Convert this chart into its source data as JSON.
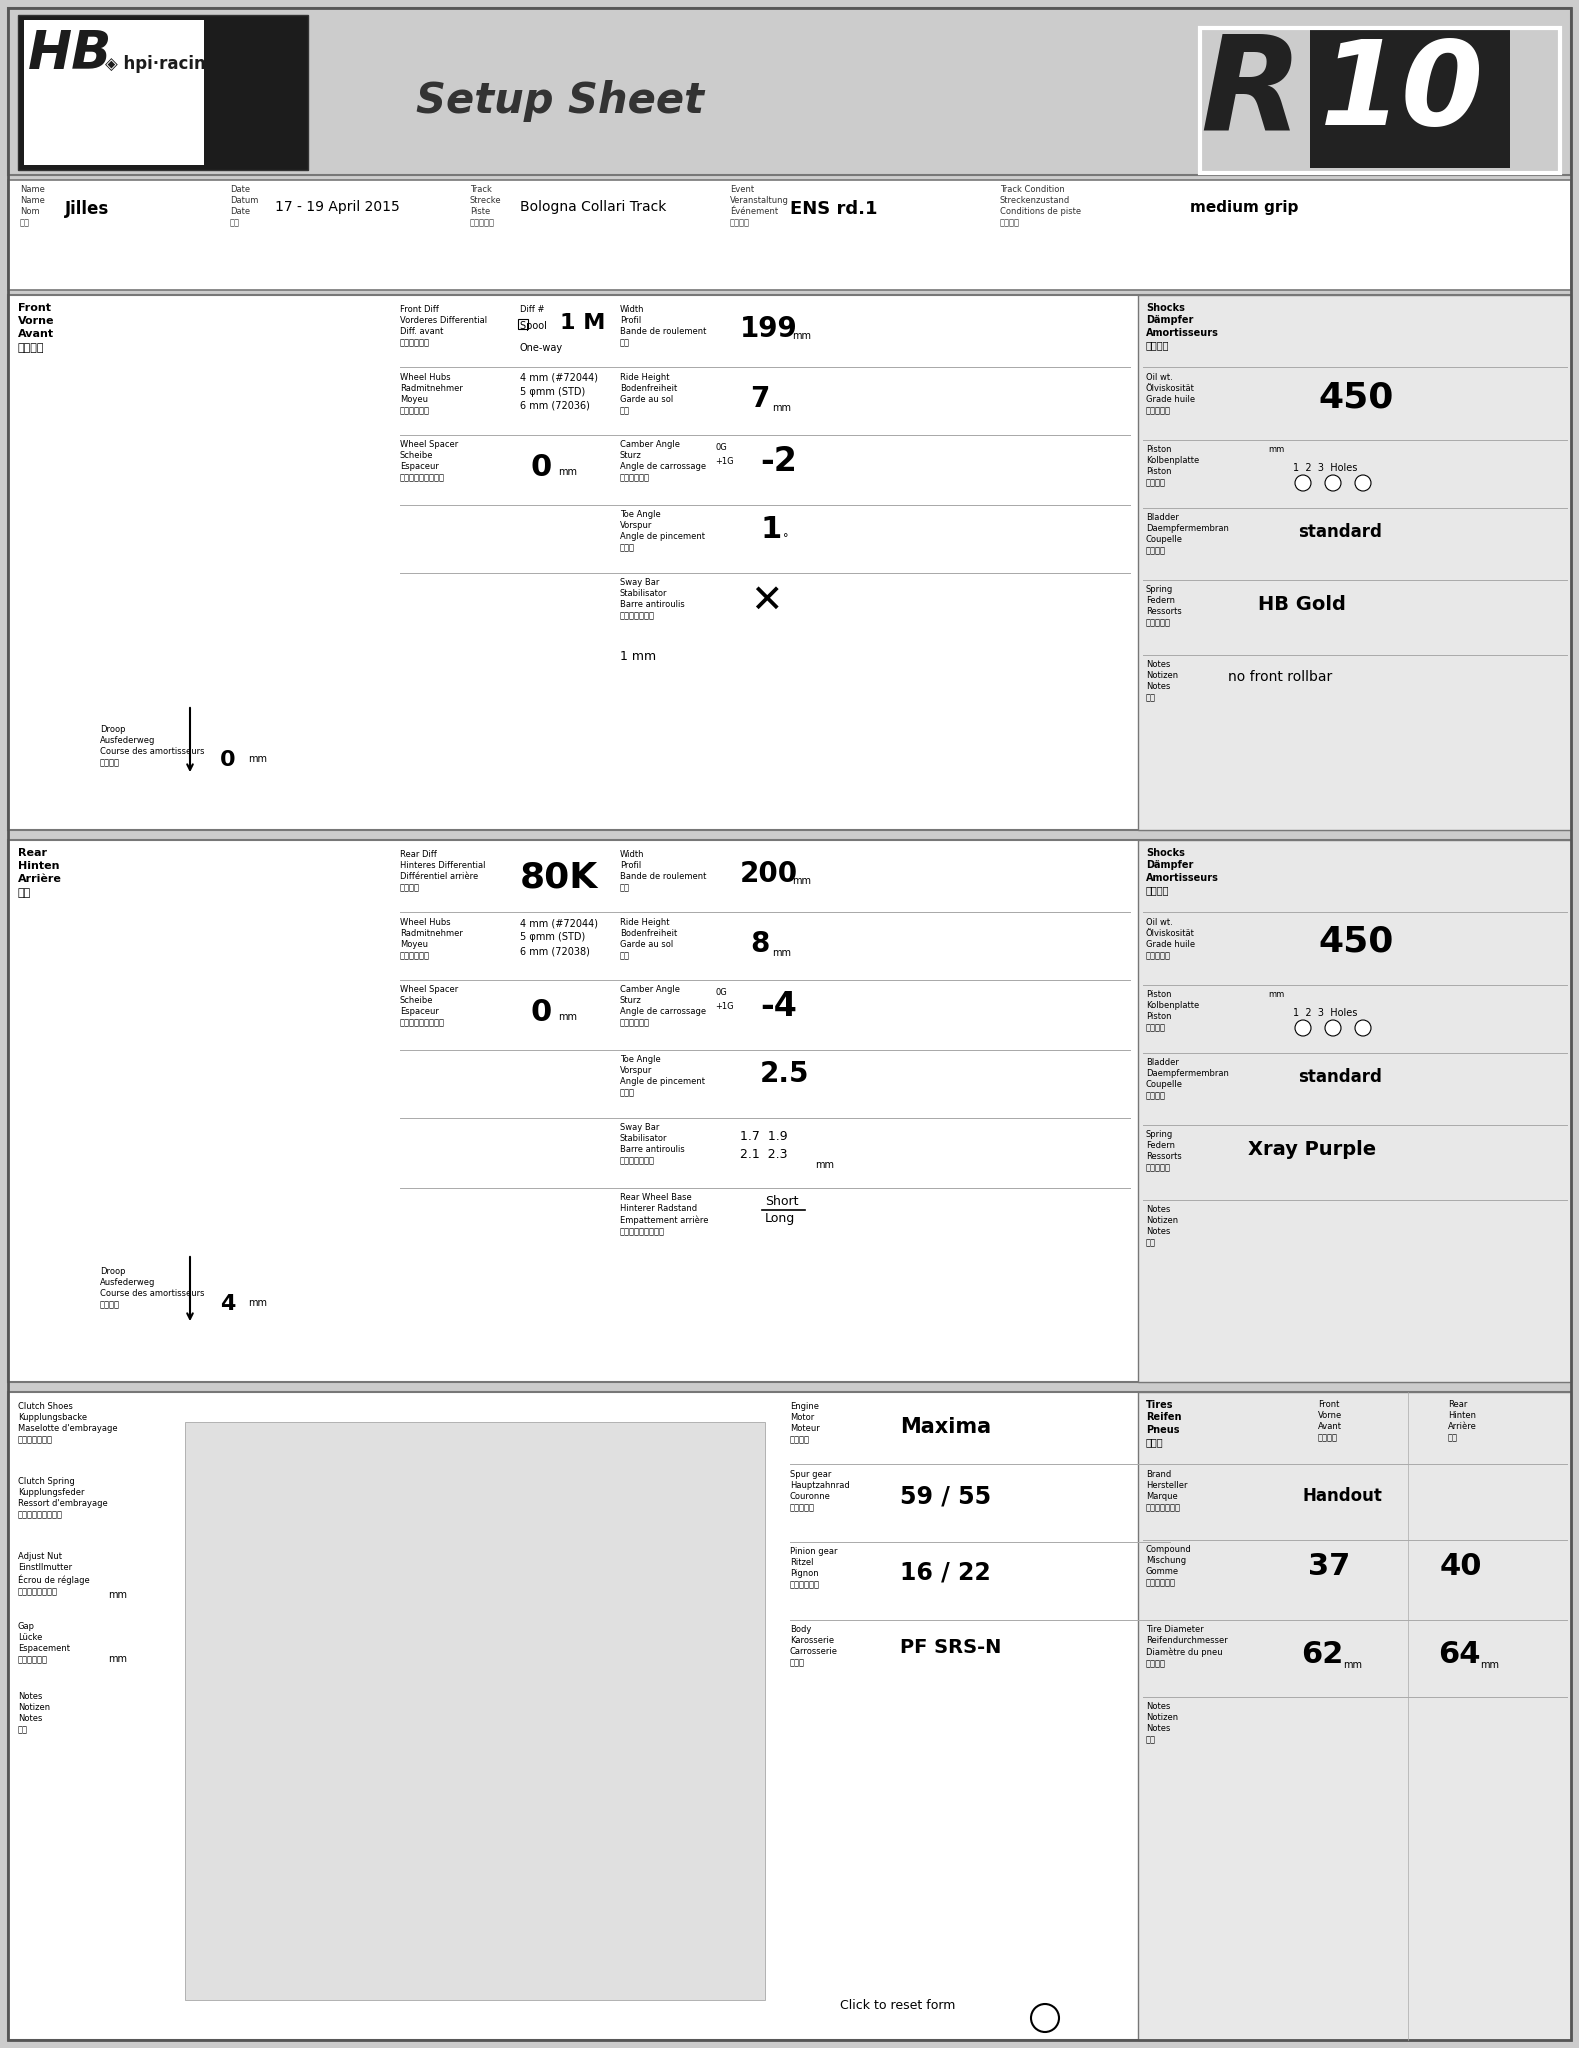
{
  "bg_color": "#cccccc",
  "title": "Setup Sheet",
  "name": "Jilles",
  "date": "17 - 19 April 2015",
  "track": "Bologna Collari Track",
  "event": "ENS rd.1",
  "condition": "medium grip",
  "front_diff": "1 M",
  "front_width": "199",
  "front_ride": "7",
  "front_camber": "-2",
  "front_toe": "1",
  "front_oil": "450",
  "front_bladder": "standard",
  "front_spring": "HB Gold",
  "front_notes": "no front rollbar",
  "front_droop": "0",
  "front_spacer": "0",
  "rear_diff": "80K",
  "rear_width": "200",
  "rear_ride": "8",
  "rear_camber": "-4",
  "rear_toe": "2.5",
  "rear_oil": "450",
  "rear_bladder": "standard",
  "rear_spring": "Xray Purple",
  "rear_droop": "4",
  "rear_spacer": "0",
  "rear_sway": "1.7  1.9\n2.1  2.3",
  "engine": "Maxima",
  "spur": "59 / 55",
  "pinion": "16 / 22",
  "body": "PF SRS-N",
  "brand": "Handout",
  "comp_front": "37",
  "comp_rear": "40",
  "diam_front": "62",
  "diam_rear": "64"
}
